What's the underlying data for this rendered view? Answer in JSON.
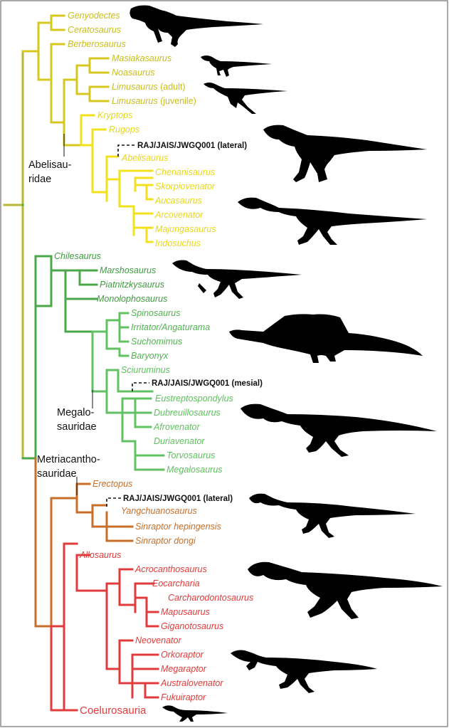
{
  "colors": {
    "ceratosauria": "#d6c820",
    "abelisauridae": "#f2e21c",
    "megalosauroidea": "#4aa84a",
    "megalosauridae": "#62c162",
    "metriacanthosauridae": "#c96f2a",
    "allosauria": "#e23b3b",
    "root": "#b8b830",
    "specimen_line": "#111111",
    "silhouette": "#000000"
  },
  "taxa": {
    "genyodectes": "Genyodectes",
    "ceratosaurus": "Ceratosaurus",
    "berberosaurus": "Berberosaurus",
    "masiakasaurus": "Masiakasaurus",
    "noasaurus": "Noasaurus",
    "limusaurus_adult": "Limusaurus",
    "limusaurus_adult_note": "(adult)",
    "limusaurus_juvenile": "Limusaurus",
    "limusaurus_juvenile_note": "(juvenile)",
    "kryptops": "Kryptops",
    "rugops": "Rugops",
    "abelisaurus": "Abelisaurus",
    "chenanisaurus": "Chenanisaurus",
    "skorpiovenator": "Skorpiovenator",
    "aucasaurus": "Aucasaurus",
    "arcovenator": "Arcovenator",
    "majungasaurus": "Majungasaurus",
    "indosuchus": "Indosuchus",
    "chilesaurus": "Chilesaurus",
    "marshosaurus": "Marshosaurus",
    "piatnitzkysaurus": "Piatnitzkysaurus",
    "monolophosaurus": "Monolophosaurus",
    "spinosaurus": "Spinosaurus",
    "irritator": "Irritator/Angaturama",
    "suchomimus": "Suchomimus",
    "baryonyx": "Baryonyx",
    "sciuruminus": "Sciuruminus",
    "eustreptospondylus": "Eustreptospondylus",
    "dubreuillosaurus": "Dubreuillosaurus",
    "afrovenator": "Afrovenator",
    "duriavenator": "Duriavenator",
    "torvosaurus": "Torvosaurus",
    "megalosaurus": "Megalosaurus",
    "erectopus": "Erectopus",
    "yangchuanosaurus": "Yangchuanosaurus",
    "sinraptor_hepingensis": "Sinraptor hepingensis",
    "sinraptor_dongi": "Sinraptor dongi",
    "allosaurus": "Allosaurus",
    "acrocanthosaurus": "Acrocanthosaurus",
    "eocarcharia": "Eocarcharia",
    "carcharodontosaurus": "Carcharodontosaurus",
    "mapusaurus": "Mapusaurus",
    "giganotosaurus": "Giganotosaurus",
    "neovenator": "Neovenator",
    "orkoraptor": "Orkoraptor",
    "megaraptor": "Megaraptor",
    "australovenator": "Australovenator",
    "fukuiraptor": "Fukuiraptor",
    "coelurosauria": "Coelurosauria"
  },
  "specimens": {
    "abelisaurid_position": "RAJ/JAIS/JWGQ001 (lateral)",
    "megalosaurid_position": "RAJ/JAIS/JWGQ001 (mesial)",
    "metriacanthosaurid_position": "RAJ/JAIS/JWGQ001 (lateral)"
  },
  "clade_labels": {
    "abelisauridae_line1": "Abelisau-",
    "abelisauridae_line2": "ridae",
    "megalosauridae_line1": "Megalo-",
    "megalosauridae_line2": "sauridae",
    "metriacanthosauridae_line1": "Metriacantho-",
    "metriacanthosauridae_line2": "sauridae"
  },
  "silhouettes": [
    "ceratosaurus-silhouette",
    "noasaurid-silhouette",
    "limusaurus-silhouette",
    "abelisaurid-silhouette",
    "majungasaurus-silhouette",
    "piatnitzkysaurus-silhouette",
    "spinosaurus-silhouette",
    "torvosaurus-silhouette",
    "sinraptor-silhouette",
    "carcharodontosaurus-silhouette",
    "megaraptor-silhouette",
    "coelurosaur-silhouette"
  ]
}
